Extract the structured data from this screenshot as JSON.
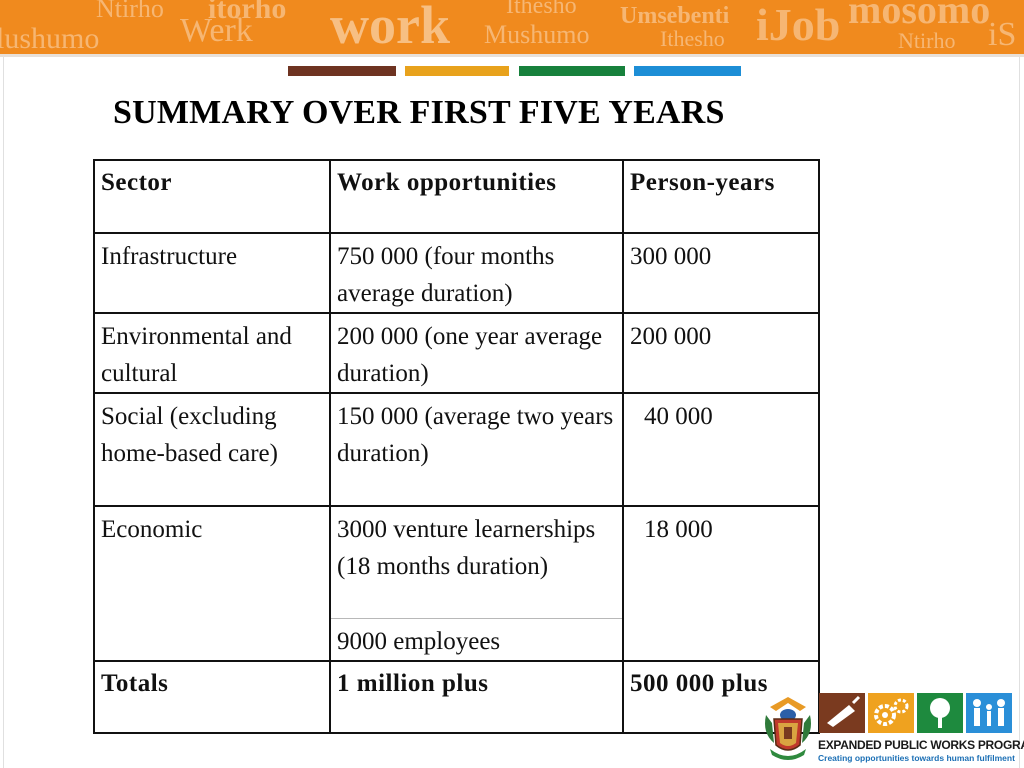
{
  "banner": {
    "background_color": "#f08a1e",
    "words": [
      "lushumo",
      "Ntirho",
      "Werk",
      "itorho",
      "work",
      "Ithesho",
      "Mushumo",
      "Umsebenti",
      "Ithesho",
      "iJob",
      "mosomo",
      "Ntirho",
      "iS"
    ]
  },
  "stripes": {
    "colors": [
      "#6e3321",
      "#e8a21c",
      "#17813c",
      "#1d8ed6"
    ]
  },
  "title": "SUMMARY OVER FIRST FIVE YEARS",
  "table": {
    "headers": [
      "Sector",
      "Work opportunities",
      "Person-years"
    ],
    "rows": [
      {
        "sector": "Infrastructure",
        "work": "750 000 (four months average duration)",
        "person_years": "300 000"
      },
      {
        "sector": "Environmental and cultural",
        "work": "200 000 (one year average duration)",
        "person_years": "200 000"
      },
      {
        "sector": "Social (excluding home-based care)",
        "work": "150 000 (average two years duration)",
        "person_years": "40 000"
      },
      {
        "sector": "Economic",
        "work": "3000 venture learnerships (18 months duration)",
        "work_extra": "9000 employees",
        "person_years": "18 000"
      }
    ],
    "totals": {
      "label": "Totals",
      "work": "1 million plus",
      "person_years": "500 000 plus"
    }
  },
  "logo": {
    "name": "EXPANDED PUBLIC WORKS PROGRAMME",
    "tagline": "Creating opportunities towards human fulfilment",
    "tile_colors": [
      "#7a3a1f",
      "#efa21f",
      "#1e8a3e",
      "#2a8fd8"
    ],
    "icons": [
      "trowel-icon",
      "gears-icon",
      "tree-icon",
      "family-icon"
    ]
  }
}
